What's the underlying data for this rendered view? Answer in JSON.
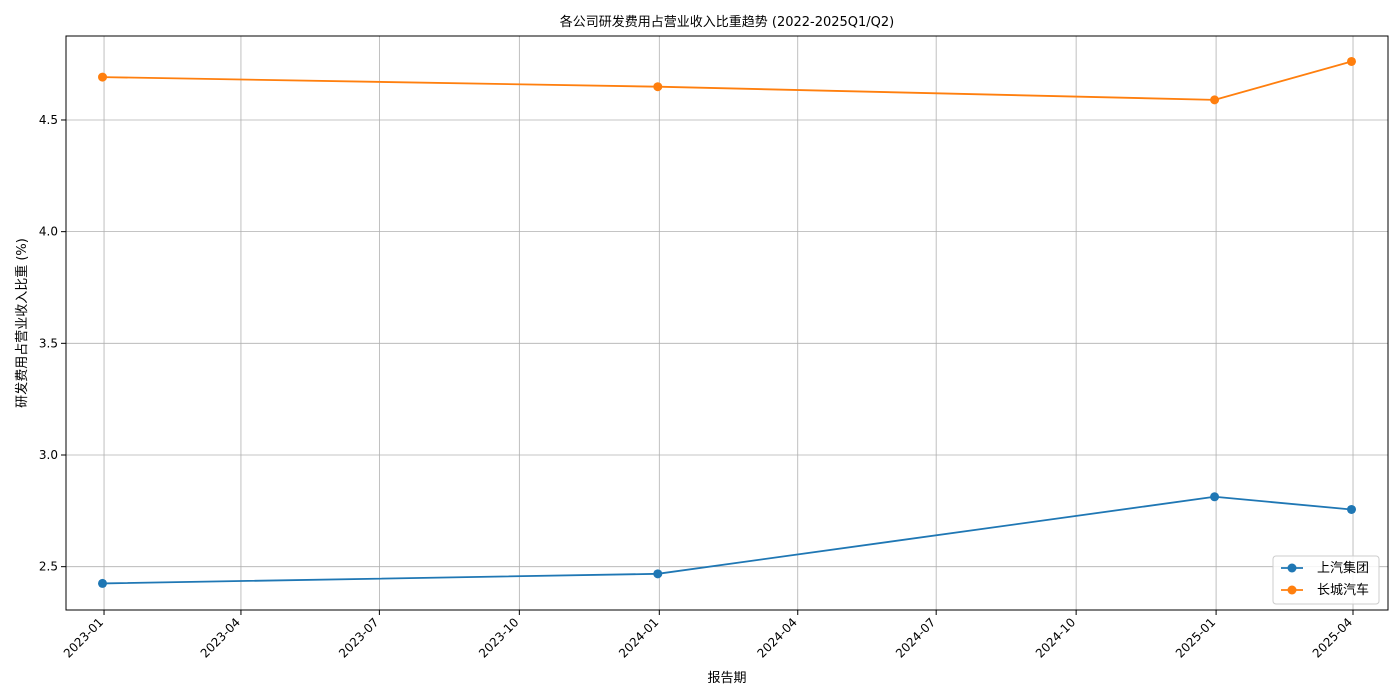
{
  "chart_data": {
    "type": "line",
    "title": "各公司研发费用占营业收入比重趋势 (2022-2025Q1/Q2)",
    "xlabel": "报告期",
    "ylabel": "研发费用占营业收入比重 (%)",
    "x_ticks": [
      "2023-01",
      "2023-04",
      "2023-07",
      "2023-10",
      "2024-01",
      "2024-04",
      "2024-07",
      "2024-10",
      "2025-01",
      "2025-04"
    ],
    "y_ticks": [
      2.5,
      3.0,
      3.5,
      4.0,
      4.5
    ],
    "y_tick_labels": [
      "2.5",
      "3.0",
      "3.5",
      "4.0",
      "4.5"
    ],
    "xlim": [
      "2022-12-07",
      "2025-04-24"
    ],
    "ylim": [
      2.306,
      4.876
    ],
    "grid": true,
    "legend_position": "lower-right",
    "series": [
      {
        "name": "上汽集团",
        "color": "#1f77b4",
        "marker": "circle",
        "points": [
          {
            "x": "2022-12-31",
            "y": 2.425
          },
          {
            "x": "2023-12-31",
            "y": 2.468
          },
          {
            "x": "2024-12-31",
            "y": 2.813
          },
          {
            "x": "2025-03-31",
            "y": 2.756
          }
        ]
      },
      {
        "name": "长城汽车",
        "color": "#ff7f0e",
        "marker": "circle",
        "points": [
          {
            "x": "2022-12-31",
            "y": 4.692
          },
          {
            "x": "2023-12-31",
            "y": 4.649
          },
          {
            "x": "2024-12-31",
            "y": 4.59
          },
          {
            "x": "2025-03-31",
            "y": 4.762
          }
        ]
      }
    ]
  }
}
